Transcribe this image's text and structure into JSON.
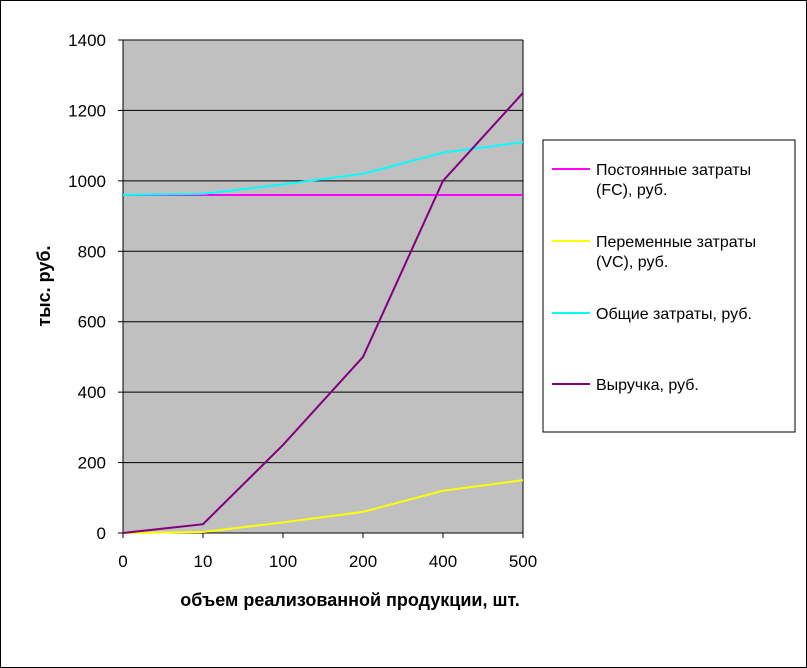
{
  "chart_data": {
    "type": "line",
    "categories": [
      "0",
      "10",
      "100",
      "200",
      "400",
      "500"
    ],
    "xlabel": "объем реализованной продукции, шт.",
    "ylabel": "тыс. руб.",
    "ylim": [
      0,
      1400
    ],
    "yticks": [
      0,
      200,
      400,
      600,
      800,
      1000,
      1200,
      1400
    ],
    "grid": true,
    "legend_position": "right",
    "plot_background": "#C0C0C0",
    "series": [
      {
        "name": "Постоянные затраты (FC), руб.",
        "legend_lines": [
          "Постоянные затраты",
          "(FC), руб."
        ],
        "color": "#FF00FF",
        "values": [
          960,
          960,
          960,
          960,
          960,
          960
        ]
      },
      {
        "name": "Переменные затраты (VC), руб.",
        "legend_lines": [
          "Переменные затраты",
          "(VC), руб."
        ],
        "color": "#FFFF00",
        "values": [
          0,
          3,
          30,
          60,
          120,
          150
        ]
      },
      {
        "name": "Общие затраты, руб.",
        "legend_lines": [
          "Общие затраты, руб."
        ],
        "color": "#00FFFF",
        "values": [
          960,
          963,
          990,
          1020,
          1080,
          1110
        ]
      },
      {
        "name": "Выручка, руб.",
        "legend_lines": [
          "Выручка, руб."
        ],
        "color": "#800080",
        "values": [
          0,
          25,
          250,
          500,
          1000,
          1250
        ]
      }
    ]
  }
}
